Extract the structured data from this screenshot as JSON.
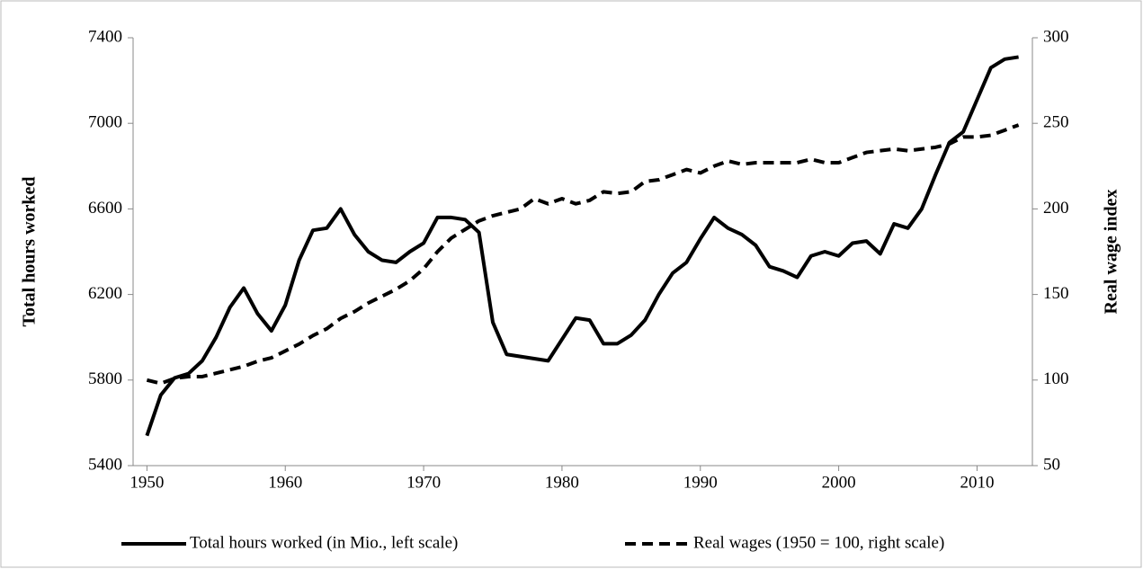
{
  "chart_data": {
    "type": "line",
    "x": [
      1950,
      1951,
      1952,
      1953,
      1954,
      1955,
      1956,
      1957,
      1958,
      1959,
      1960,
      1961,
      1962,
      1963,
      1964,
      1965,
      1966,
      1967,
      1968,
      1969,
      1970,
      1971,
      1972,
      1973,
      1974,
      1975,
      1976,
      1977,
      1978,
      1979,
      1980,
      1981,
      1982,
      1983,
      1984,
      1985,
      1986,
      1987,
      1988,
      1989,
      1990,
      1991,
      1992,
      1993,
      1994,
      1995,
      1996,
      1997,
      1998,
      1999,
      2000,
      2001,
      2002,
      2003,
      2004,
      2005,
      2006,
      2007,
      2008,
      2009,
      2010,
      2011,
      2012,
      2013
    ],
    "xlim": [
      1949,
      2014
    ],
    "xticks": [
      1950,
      1960,
      1970,
      1980,
      1990,
      2000,
      2010
    ],
    "ylim": [
      5400,
      7400
    ],
    "yticks": [
      5400,
      5800,
      6200,
      6600,
      7000,
      7400
    ],
    "y2lim": [
      50,
      300
    ],
    "y2ticks": [
      50,
      100,
      150,
      200,
      250,
      300
    ],
    "y_label": "Total hours worked",
    "y2_label": "Real wage index",
    "legend": "bottom",
    "series": [
      {
        "name": "Total hours worked (in Mio., left scale)",
        "color": "#000000",
        "dash": false,
        "values": [
          5540,
          5730,
          5810,
          5830,
          5890,
          6000,
          6140,
          6230,
          6110,
          6030,
          6150,
          6360,
          6500,
          6510,
          6600,
          6480,
          6400,
          6360,
          6350,
          6400,
          6440,
          6560,
          6560,
          6550,
          6490,
          6070,
          5920,
          5910,
          5900,
          5890,
          5990,
          6090,
          6080,
          5970,
          5970,
          6010,
          6080,
          6200,
          6300,
          6350,
          6460,
          6560,
          6510,
          6480,
          6430,
          6330,
          6310,
          6280,
          6380,
          6400,
          6380,
          6440,
          6450,
          6390,
          6530,
          6510,
          6600,
          6760,
          6910,
          6960,
          7110,
          7260,
          7300,
          7310
        ]
      },
      {
        "name": "Real wages (1950 = 100, right scale)",
        "color": "#000000",
        "dash": true,
        "axis": "y2",
        "values": [
          100,
          98,
          101,
          102,
          102,
          104,
          106,
          108,
          111,
          113,
          117,
          121,
          126,
          130,
          136,
          140,
          145,
          149,
          153,
          158,
          165,
          175,
          183,
          188,
          193,
          196,
          198,
          200,
          206,
          203,
          206,
          203,
          205,
          210,
          209,
          210,
          216,
          217,
          220,
          223,
          221,
          225,
          228,
          226,
          227,
          227,
          227,
          227,
          229,
          227,
          227,
          230,
          233,
          234,
          235,
          234,
          235,
          236,
          238,
          242,
          242,
          243,
          246,
          249
        ]
      }
    ]
  }
}
